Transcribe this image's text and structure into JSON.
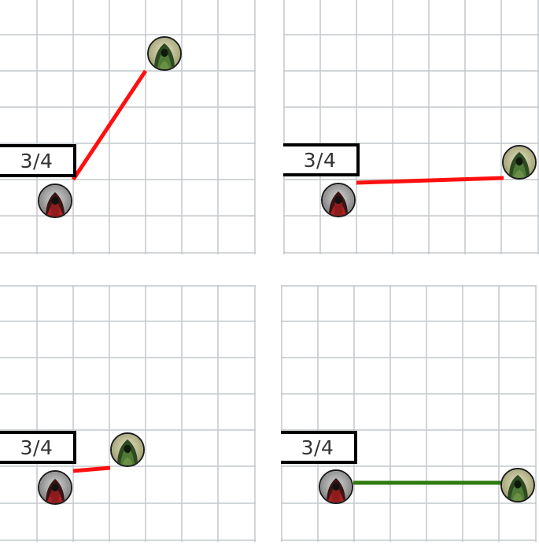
{
  "panels": [
    {
      "id": "top-left",
      "range_label": "3/4",
      "los_status": "blocked",
      "attacker": "red-hooded-figure",
      "target": "green-hooded-figure"
    },
    {
      "id": "top-right",
      "range_label": "3/4",
      "los_status": "blocked",
      "attacker": "red-hooded-figure",
      "target": "green-hooded-figure"
    },
    {
      "id": "bottom-left",
      "range_label": "3/4",
      "los_status": "blocked",
      "attacker": "red-hooded-figure",
      "target": "green-hooded-figure"
    },
    {
      "id": "bottom-right",
      "range_label": "3/4",
      "los_status": "clear",
      "attacker": "red-hooded-figure",
      "target": "green-hooded-figure"
    }
  ],
  "colors": {
    "grid_line": "#c4c8cc",
    "blocked_line": "#ff1010",
    "clear_line": "#2f7a10",
    "label_border": "#000000"
  }
}
